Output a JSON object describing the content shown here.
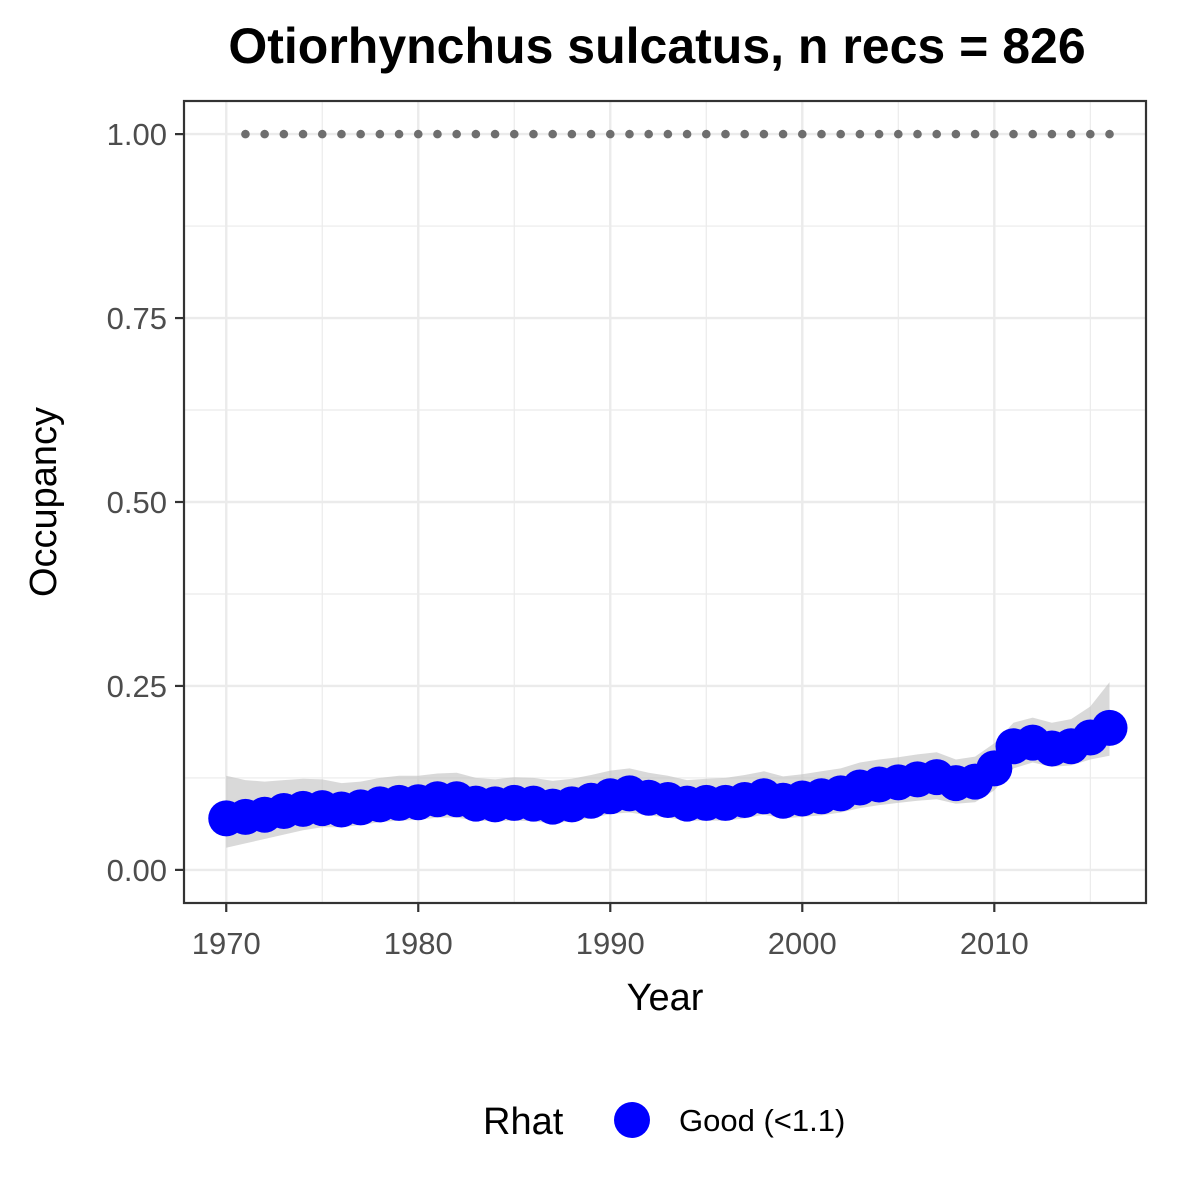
{
  "chart_data": {
    "type": "line",
    "title": "Otiorhynchus sulcatus, n recs = 826",
    "xlabel": "Year",
    "ylabel": "Occupancy",
    "xlim": [
      1967.8,
      2017.9
    ],
    "ylim": [
      -0.045,
      1.045
    ],
    "x_ticks": [
      1970,
      1980,
      1990,
      2000,
      2010
    ],
    "y_ticks": [
      0.0,
      0.25,
      0.5,
      0.75,
      1.0
    ],
    "y_tick_labels": [
      "0.00",
      "0.25",
      "0.50",
      "0.75",
      "1.00"
    ],
    "grid": true,
    "legend_position": "bottom",
    "legend": {
      "title": "Rhat",
      "entries": [
        {
          "label": "Good (<1.1)",
          "color": "#0000ff"
        }
      ]
    },
    "colors": {
      "points": "#0000ff",
      "ribbon": "#bfbfbf",
      "reference": "#6e6e6e",
      "grid": "#ebebeb",
      "panel_border": "#333333",
      "tick_label": "#4d4d4d"
    },
    "series": [
      {
        "x": [
          1970,
          1971,
          1972,
          1973,
          1974,
          1975,
          1976,
          1977,
          1978,
          1979,
          1980,
          1981,
          1982,
          1983,
          1984,
          1985,
          1986,
          1987,
          1988,
          1989,
          1990,
          1991,
          1992,
          1993,
          1994,
          1995,
          1996,
          1997,
          1998,
          1999,
          2000,
          2001,
          2002,
          2003,
          2004,
          2005,
          2006,
          2007,
          2008,
          2009,
          2010,
          2011,
          2012,
          2013,
          2014,
          2015,
          2016
        ],
        "values": [
          0.07,
          0.072,
          0.075,
          0.08,
          0.083,
          0.084,
          0.082,
          0.085,
          0.089,
          0.091,
          0.092,
          0.096,
          0.096,
          0.09,
          0.089,
          0.091,
          0.09,
          0.086,
          0.089,
          0.094,
          0.1,
          0.104,
          0.098,
          0.095,
          0.09,
          0.091,
          0.091,
          0.095,
          0.1,
          0.094,
          0.097,
          0.1,
          0.104,
          0.112,
          0.116,
          0.119,
          0.123,
          0.126,
          0.118,
          0.12,
          0.138,
          0.168,
          0.173,
          0.165,
          0.168,
          0.18,
          0.193
        ],
        "lower": [
          0.03,
          0.036,
          0.042,
          0.048,
          0.054,
          0.058,
          0.058,
          0.061,
          0.065,
          0.067,
          0.068,
          0.071,
          0.071,
          0.067,
          0.066,
          0.067,
          0.066,
          0.063,
          0.066,
          0.07,
          0.076,
          0.078,
          0.074,
          0.071,
          0.067,
          0.067,
          0.067,
          0.07,
          0.075,
          0.07,
          0.072,
          0.074,
          0.078,
          0.084,
          0.088,
          0.091,
          0.094,
          0.096,
          0.09,
          0.092,
          0.108,
          0.138,
          0.146,
          0.14,
          0.142,
          0.15,
          0.155
        ],
        "upper": [
          0.128,
          0.122,
          0.12,
          0.122,
          0.124,
          0.123,
          0.118,
          0.12,
          0.125,
          0.128,
          0.128,
          0.131,
          0.132,
          0.125,
          0.123,
          0.126,
          0.125,
          0.121,
          0.124,
          0.129,
          0.135,
          0.138,
          0.132,
          0.128,
          0.122,
          0.124,
          0.125,
          0.129,
          0.134,
          0.127,
          0.13,
          0.134,
          0.138,
          0.146,
          0.15,
          0.153,
          0.157,
          0.16,
          0.15,
          0.154,
          0.172,
          0.2,
          0.207,
          0.2,
          0.205,
          0.222,
          0.255
        ]
      }
    ],
    "reference_series": {
      "x": [
        1971,
        1972,
        1973,
        1974,
        1975,
        1976,
        1977,
        1978,
        1979,
        1980,
        1981,
        1982,
        1983,
        1984,
        1985,
        1986,
        1987,
        1988,
        1989,
        1990,
        1991,
        1992,
        1993,
        1994,
        1995,
        1996,
        1997,
        1998,
        1999,
        2000,
        2001,
        2002,
        2003,
        2004,
        2005,
        2006,
        2007,
        2008,
        2009,
        2010,
        2011,
        2012,
        2013,
        2014,
        2015,
        2016
      ],
      "value": 1.0
    }
  }
}
